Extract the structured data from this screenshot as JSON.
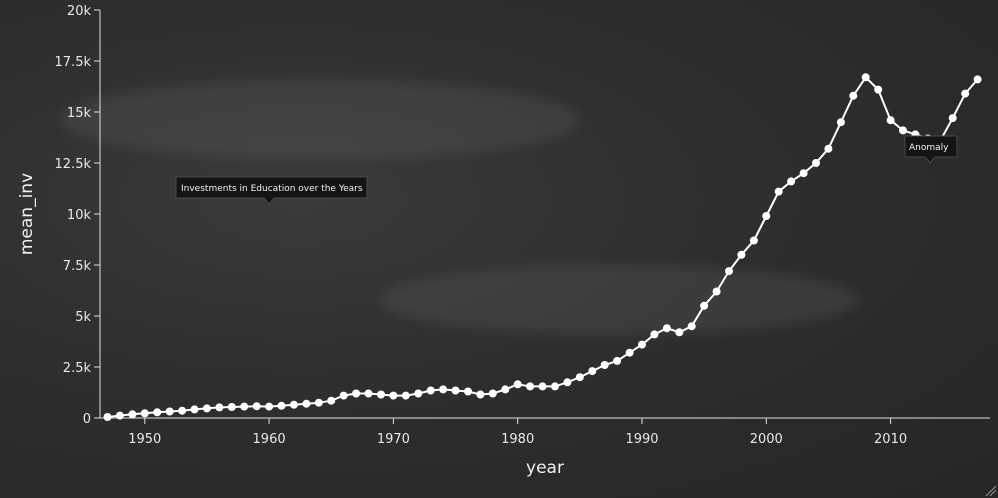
{
  "chart_data": {
    "type": "line",
    "title": "",
    "xlabel": "year",
    "ylabel": "mean_inv",
    "xlim": [
      1947,
      2018
    ],
    "ylim": [
      0,
      20000
    ],
    "x_ticks": [
      1950,
      1960,
      1970,
      1980,
      1990,
      2000,
      2010
    ],
    "x_tick_labels": [
      "1950",
      "1960",
      "1970",
      "1980",
      "1990",
      "2000",
      "2010"
    ],
    "y_ticks": [
      0,
      2500,
      5000,
      7500,
      10000,
      12500,
      15000,
      17500,
      20000
    ],
    "y_tick_labels": [
      "0",
      "2.5k",
      "5k",
      "7.5k",
      "10k",
      "12.5k",
      "15k",
      "17.5k",
      "20k"
    ],
    "grid": false,
    "colors": {
      "line": "#ffffff",
      "background": "#2b2b2b",
      "axis": "#e0e0e0",
      "annotation_bg": "#141414"
    },
    "annotations": [
      {
        "text": "Investments in Education over the Years",
        "x": 1960,
        "y": 10500
      },
      {
        "text": "Anomaly",
        "x": 2013,
        "y": 12800
      }
    ],
    "series": [
      {
        "x": [
          1947,
          1948,
          1949,
          1950,
          1951,
          1952,
          1953,
          1954,
          1955,
          1956,
          1957,
          1958,
          1959,
          1960,
          1961,
          1962,
          1963,
          1964,
          1965,
          1966,
          1967,
          1968,
          1969,
          1970,
          1971,
          1972,
          1973,
          1974,
          1975,
          1976,
          1977,
          1978,
          1979,
          1980,
          1981,
          1982,
          1983,
          1984,
          1985,
          1986,
          1987,
          1988,
          1989,
          1990,
          1991,
          1992,
          1993,
          1994,
          1995,
          1996,
          1997,
          1998,
          1999,
          2000,
          2001,
          2002,
          2003,
          2004,
          2005,
          2006,
          2007,
          2008,
          2009,
          2010,
          2011,
          2012,
          2013,
          2014,
          2015,
          2016,
          2017
        ],
        "y": [
          50,
          120,
          180,
          230,
          280,
          320,
          360,
          420,
          470,
          520,
          540,
          560,
          580,
          560,
          600,
          650,
          700,
          750,
          850,
          1100,
          1200,
          1200,
          1150,
          1100,
          1100,
          1200,
          1350,
          1400,
          1350,
          1300,
          1150,
          1200,
          1400,
          1650,
          1550,
          1550,
          1550,
          1750,
          2000,
          2300,
          2600,
          2800,
          3200,
          3600,
          4100,
          4400,
          4200,
          4500,
          5500,
          6200,
          7200,
          8000,
          8700,
          9900,
          11100,
          11600,
          12000,
          12500,
          13200,
          14500,
          15800,
          16700,
          16100,
          14600,
          14100,
          13900,
          13700,
          13600,
          14700,
          15900,
          16600
        ]
      }
    ]
  }
}
